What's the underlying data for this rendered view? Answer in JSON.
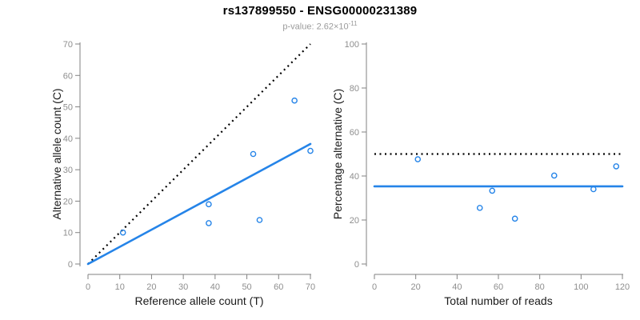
{
  "header": {
    "title": "rs137899550 - ENSG00000231389",
    "pvalue_prefix": "p-value: 2.62×10",
    "pvalue_exponent": "-11"
  },
  "colors": {
    "accent_blue": "#2584E8",
    "dotted_line": "#000000",
    "axis_line": "#828282",
    "tick_label": "#8e8e8e",
    "axis_title": "#1a1a1a",
    "title": "#000000",
    "subtitle": "#9b9b9b"
  },
  "chart_data": [
    {
      "type": "scatter",
      "panel": "left",
      "xlabel": "Reference allele count (T)",
      "ylabel": "Alternative allele count (C)",
      "xlim": [
        0,
        70
      ],
      "ylim": [
        0,
        70
      ],
      "xticks": [
        0,
        10,
        20,
        30,
        40,
        50,
        60,
        70
      ],
      "yticks": [
        0,
        10,
        20,
        30,
        40,
        50,
        60,
        70
      ],
      "grid": false,
      "legend": "none",
      "points": [
        [
          11,
          10
        ],
        [
          38,
          13
        ],
        [
          38,
          19
        ],
        [
          52,
          35
        ],
        [
          54,
          14
        ],
        [
          65,
          52
        ],
        [
          70,
          36
        ]
      ],
      "lines": [
        {
          "name": "expected-50pct-dotted-line",
          "style": "dotted",
          "color": "#000000",
          "from": [
            0,
            0
          ],
          "to": [
            70,
            70
          ]
        },
        {
          "name": "fitted-allelic-ratio-line",
          "style": "solid",
          "color": "#2584E8",
          "from": [
            0,
            0
          ],
          "to": [
            70,
            38.2
          ]
        }
      ]
    },
    {
      "type": "scatter",
      "panel": "right",
      "xlabel": "Total number of reads",
      "ylabel": "Percentage alternative (C)",
      "xlim": [
        0,
        120
      ],
      "ylim": [
        0,
        100
      ],
      "xticks": [
        0,
        20,
        40,
        60,
        80,
        100,
        120
      ],
      "yticks": [
        0,
        20,
        40,
        60,
        80,
        100
      ],
      "grid": false,
      "legend": "none",
      "points": [
        [
          21,
          47.6
        ],
        [
          51,
          25.5
        ],
        [
          57,
          33.3
        ],
        [
          68,
          20.6
        ],
        [
          87,
          40.2
        ],
        [
          106,
          34.0
        ],
        [
          117,
          44.4
        ]
      ],
      "lines": [
        {
          "name": "expected-50pct-dotted-line",
          "style": "dotted",
          "color": "#000000",
          "from": [
            0,
            50
          ],
          "to": [
            119,
            50
          ]
        },
        {
          "name": "mean-percentage-line",
          "style": "solid",
          "color": "#2584E8",
          "from": [
            0,
            35.3
          ],
          "to": [
            120,
            35.3
          ]
        }
      ]
    }
  ]
}
